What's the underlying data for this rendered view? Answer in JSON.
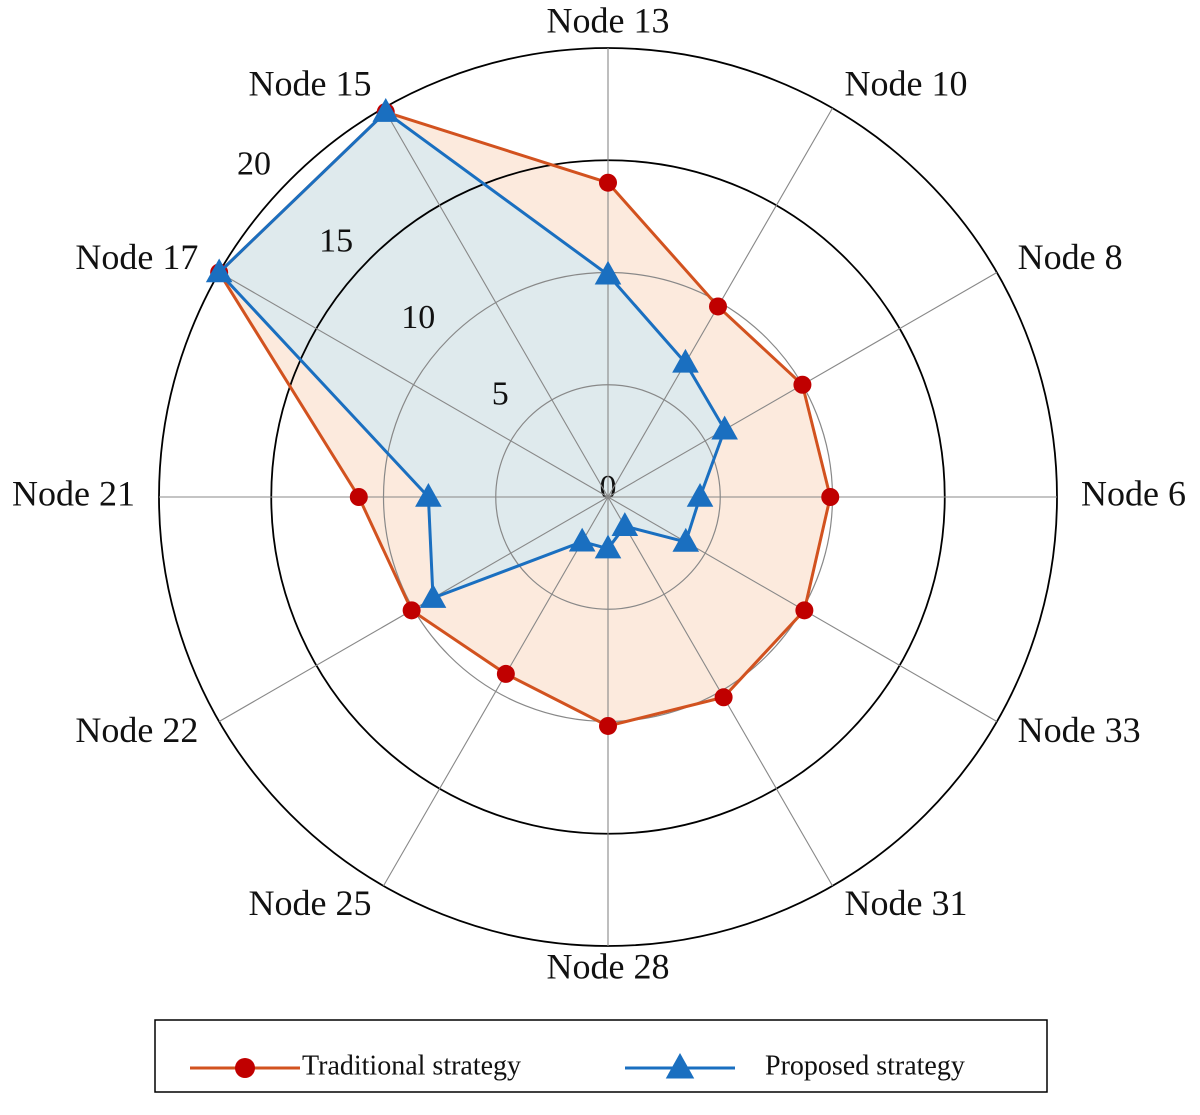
{
  "chart_data": {
    "type": "radar",
    "categories": [
      "Node 13",
      "Node 10",
      "Node 8",
      "Node 6",
      "Node 33",
      "Node 31",
      "Node 28",
      "Node 25",
      "Node 22",
      "Node 21",
      "Node 17",
      "Node 15"
    ],
    "series": [
      {
        "name": "Traditional strategy",
        "color": "#d2521f",
        "marker_color": "#c00000",
        "fill": "#fbe3d2",
        "marker": "circle",
        "values": [
          14.0,
          9.8,
          10.0,
          9.9,
          10.1,
          10.3,
          10.2,
          9.1,
          10.1,
          11.1,
          20.0,
          19.8
        ]
      },
      {
        "name": "Proposed strategy",
        "color": "#1a6fc0",
        "marker_color": "#1a6fc0",
        "fill": "#d6e9f1",
        "marker": "triangle",
        "values": [
          9.9,
          6.9,
          6.0,
          4.1,
          4.0,
          1.5,
          2.3,
          2.3,
          9.0,
          8.0,
          20.0,
          19.8
        ]
      }
    ],
    "rlim": [
      0,
      20
    ],
    "rticks": [
      0,
      5,
      10,
      15,
      20
    ],
    "grid": true,
    "legend": "bottom"
  }
}
